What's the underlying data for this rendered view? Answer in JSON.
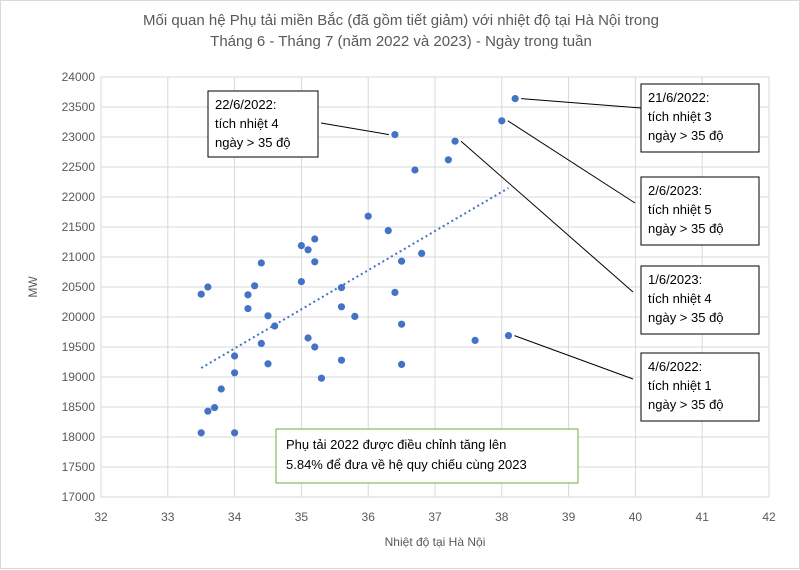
{
  "chart_data": {
    "type": "scatter",
    "title_lines": [
      "Mối quan hệ Phụ tải miền Bắc (đã gồm tiết giảm) với nhiệt độ tại Hà Nội trong",
      "Tháng 6 - Tháng 7 (năm 2022 và 2023) - Ngày trong tuần"
    ],
    "xlabel": "Nhiệt độ tại Hà Nội",
    "ylabel": "MW",
    "xlim": [
      32,
      42
    ],
    "ylim": [
      17000,
      24000
    ],
    "x_ticks": [
      32,
      33,
      34,
      35,
      36,
      37,
      38,
      39,
      40,
      41,
      42
    ],
    "y_ticks": [
      17000,
      17500,
      18000,
      18500,
      19000,
      19500,
      20000,
      20500,
      21000,
      21500,
      22000,
      22500,
      23000,
      23500,
      24000
    ],
    "grid": "horizontal and vertical",
    "marker_color": "#4472c4",
    "trendline": {
      "type": "linear",
      "style": "dotted",
      "color": "#4472c4",
      "from": {
        "x": 33.5,
        "y": 19150
      },
      "to": {
        "x": 38.1,
        "y": 22150
      }
    },
    "points": [
      {
        "x": 33.5,
        "y": 20380
      },
      {
        "x": 33.6,
        "y": 20500
      },
      {
        "x": 33.5,
        "y": 18070
      },
      {
        "x": 33.6,
        "y": 18430
      },
      {
        "x": 33.7,
        "y": 18490
      },
      {
        "x": 33.8,
        "y": 18800
      },
      {
        "x": 34.0,
        "y": 19350
      },
      {
        "x": 34.0,
        "y": 19070
      },
      {
        "x": 34.0,
        "y": 18070
      },
      {
        "x": 34.2,
        "y": 20370
      },
      {
        "x": 34.2,
        "y": 20140
      },
      {
        "x": 34.3,
        "y": 20520
      },
      {
        "x": 34.4,
        "y": 20900
      },
      {
        "x": 34.4,
        "y": 19560
      },
      {
        "x": 34.5,
        "y": 20020
      },
      {
        "x": 34.5,
        "y": 19220
      },
      {
        "x": 34.6,
        "y": 19850
      },
      {
        "x": 35.0,
        "y": 21190
      },
      {
        "x": 35.0,
        "y": 20590
      },
      {
        "x": 35.1,
        "y": 21120
      },
      {
        "x": 35.1,
        "y": 19650
      },
      {
        "x": 35.2,
        "y": 21300
      },
      {
        "x": 35.2,
        "y": 20920
      },
      {
        "x": 35.2,
        "y": 19500
      },
      {
        "x": 35.3,
        "y": 18980
      },
      {
        "x": 35.6,
        "y": 20490
      },
      {
        "x": 35.6,
        "y": 20170
      },
      {
        "x": 35.6,
        "y": 19280
      },
      {
        "x": 35.8,
        "y": 20010
      },
      {
        "x": 36.0,
        "y": 21680
      },
      {
        "x": 36.3,
        "y": 21440
      },
      {
        "x": 36.4,
        "y": 23040
      },
      {
        "x": 36.4,
        "y": 20410
      },
      {
        "x": 36.5,
        "y": 20930
      },
      {
        "x": 36.5,
        "y": 19880
      },
      {
        "x": 36.5,
        "y": 19210
      },
      {
        "x": 36.7,
        "y": 22450
      },
      {
        "x": 36.8,
        "y": 21060
      },
      {
        "x": 37.2,
        "y": 22620
      },
      {
        "x": 37.3,
        "y": 22930
      },
      {
        "x": 37.6,
        "y": 19610
      },
      {
        "x": 38.0,
        "y": 23270
      },
      {
        "x": 38.1,
        "y": 19690
      },
      {
        "x": 38.2,
        "y": 23640
      }
    ],
    "annotations": [
      {
        "lines": [
          "22/6/2022:",
          "tích nhiệt 4",
          "ngày > 35 độ"
        ],
        "point": {
          "x": 36.4,
          "y": 23040
        },
        "side": "left-top"
      },
      {
        "lines": [
          "21/6/2022:",
          "tích nhiệt 3",
          "ngày > 35 độ"
        ],
        "point": {
          "x": 38.2,
          "y": 23640
        },
        "side": "right"
      },
      {
        "lines": [
          "2/6/2023:",
          "tích nhiệt 5",
          "ngày > 35 độ"
        ],
        "point": {
          "x": 38.0,
          "y": 23270
        },
        "side": "right"
      },
      {
        "lines": [
          "1/6/2023:",
          "tích nhiệt 4",
          "ngày > 35 độ"
        ],
        "point": {
          "x": 37.3,
          "y": 22930
        },
        "side": "right"
      },
      {
        "lines": [
          "4/6/2022:",
          "tích nhiệt 1",
          "ngày > 35 độ"
        ],
        "point": {
          "x": 38.1,
          "y": 19690
        },
        "side": "right"
      }
    ],
    "note": {
      "lines": [
        "Phụ tải 2022 được điều chỉnh tăng lên",
        "5.84% để đưa về hệ quy chiếu cùng 2023"
      ],
      "border_color": "#70ad47"
    }
  }
}
